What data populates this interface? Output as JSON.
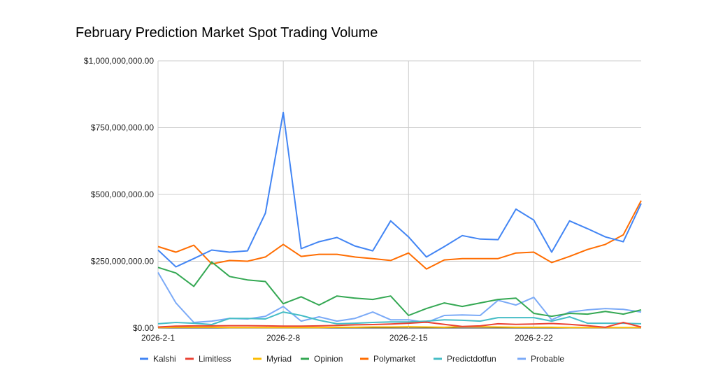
{
  "chart_data": {
    "type": "line",
    "title": "February Prediction Market Spot Trading Volume",
    "xlabel": "",
    "ylabel": "",
    "x": [
      "2026-2-1",
      "2026-2-2",
      "2026-2-3",
      "2026-2-4",
      "2026-2-5",
      "2026-2-6",
      "2026-2-7",
      "2026-2-8",
      "2026-2-9",
      "2026-2-10",
      "2026-2-11",
      "2026-2-12",
      "2026-2-13",
      "2026-2-14",
      "2026-2-15",
      "2026-2-16",
      "2026-2-17",
      "2026-2-18",
      "2026-2-19",
      "2026-2-20",
      "2026-2-21",
      "2026-2-22",
      "2026-2-23",
      "2026-2-24",
      "2026-2-25",
      "2026-2-26",
      "2026-2-27",
      "2026-2-28"
    ],
    "x_tick_labels": [
      "2026-2-1",
      "2026-2-8",
      "2026-2-15",
      "2026-2-22"
    ],
    "ylim": [
      0,
      1000000000
    ],
    "y_tick_labels": [
      "$0.00",
      "$250,000,000.00",
      "$500,000,000.00",
      "$750,000,000.00",
      "$1,000,000,000.00"
    ],
    "y_ticks": [
      0,
      250000000,
      500000000,
      750000000,
      1000000000
    ],
    "grid": true,
    "legend_position": "bottom",
    "series": [
      {
        "name": "Kalshi",
        "color": "#4285f4",
        "values": [
          292,
          229,
          260,
          292,
          284,
          289,
          430,
          807,
          297,
          323,
          339,
          307,
          289,
          401,
          341,
          266,
          305,
          346,
          333,
          331,
          445,
          404,
          284,
          401,
          372,
          341,
          323,
          466
        ]
      },
      {
        "name": "Limitless",
        "color": "#ea4335",
        "values": [
          4,
          7,
          8,
          8,
          9,
          9,
          8,
          7,
          7,
          8,
          10,
          12,
          13,
          15,
          18,
          22,
          14,
          6,
          8,
          16,
          14,
          15,
          17,
          14,
          9,
          3,
          21,
          4
        ]
      },
      {
        "name": "Myriad",
        "color": "#fbbc04",
        "values": [
          2,
          3,
          3,
          3,
          2,
          2,
          2,
          2,
          2,
          2,
          3,
          3,
          4,
          4,
          5,
          4,
          3,
          5,
          5,
          4,
          3,
          3,
          3,
          2,
          2,
          2,
          2,
          2
        ]
      },
      {
        "name": "Opinion",
        "color": "#34a853",
        "values": [
          227,
          206,
          156,
          247,
          193,
          180,
          174,
          91,
          117,
          86,
          120,
          112,
          107,
          120,
          47,
          73,
          94,
          81,
          94,
          107,
          112,
          55,
          44,
          55,
          52,
          62,
          52,
          68
        ]
      },
      {
        "name": "Polymarket",
        "color": "#ff6d01",
        "values": [
          305,
          284,
          310,
          240,
          253,
          250,
          266,
          313,
          268,
          276,
          276,
          266,
          260,
          253,
          281,
          221,
          255,
          260,
          260,
          260,
          281,
          284,
          245,
          268,
          294,
          313,
          349,
          477
        ]
      },
      {
        "name": "Predictdotfun",
        "color": "#46bdc6",
        "values": [
          16,
          21,
          18,
          13,
          36,
          36,
          34,
          60,
          47,
          29,
          16,
          18,
          21,
          23,
          23,
          26,
          31,
          29,
          26,
          39,
          39,
          39,
          26,
          42,
          18,
          18,
          18,
          16
        ]
      },
      {
        "name": "Probable",
        "color": "#7baaf7",
        "values": [
          208,
          94,
          21,
          26,
          36,
          34,
          44,
          81,
          26,
          42,
          26,
          36,
          60,
          31,
          31,
          21,
          47,
          49,
          47,
          104,
          86,
          115,
          31,
          60,
          68,
          73,
          70,
          60
        ]
      }
    ],
    "value_unit_multiplier": 1000000
  }
}
